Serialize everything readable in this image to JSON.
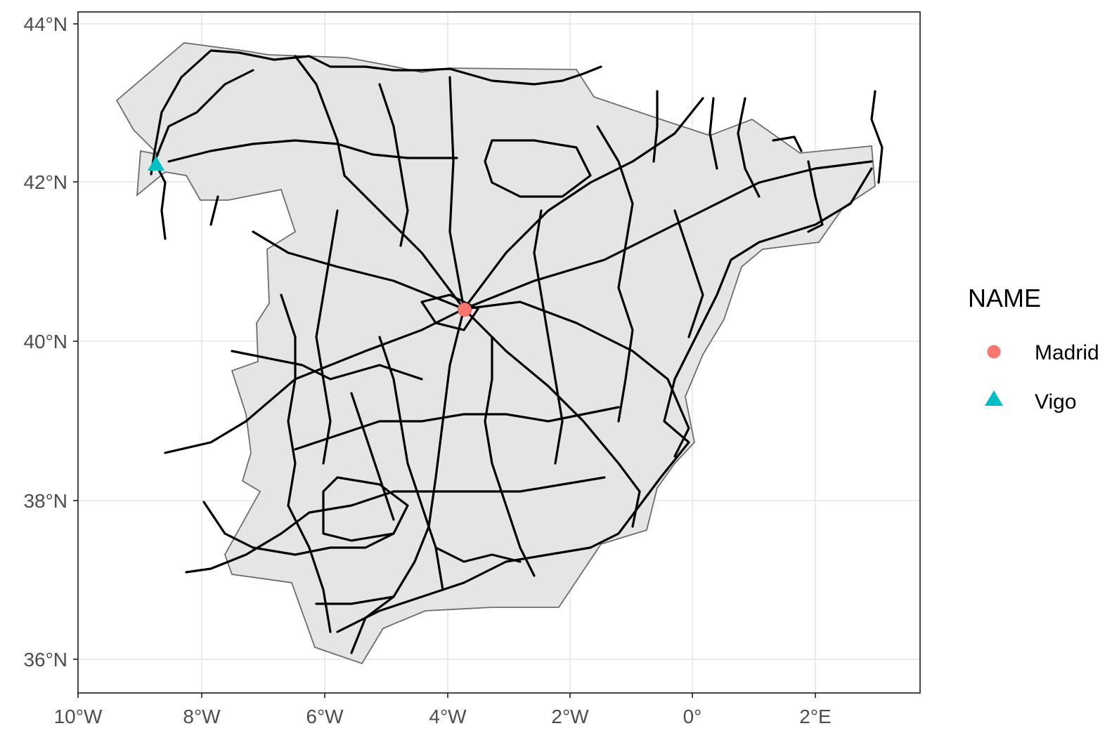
{
  "map": {
    "x_ticks": [
      "10°W",
      "8°W",
      "6°W",
      "4°W",
      "2°W",
      "0°",
      "2°E"
    ],
    "y_ticks": [
      "44°N",
      "42°N",
      "40°N",
      "38°N",
      "36°N"
    ],
    "land_fill": "#e5e5e5",
    "land_stroke": "#6e6e6e",
    "network_color": "#000000",
    "grid": true
  },
  "legend": {
    "title": "NAME",
    "items": [
      {
        "label": "Madrid",
        "shape": "circle",
        "color": "#F8766D"
      },
      {
        "label": "Vigo",
        "shape": "triangle",
        "color": "#00BFC4"
      }
    ]
  },
  "points": [
    {
      "name": "Madrid",
      "lon": -3.7,
      "lat": 40.4,
      "shape": "circle",
      "color": "#F8766D"
    },
    {
      "name": "Vigo",
      "lon": -8.72,
      "lat": 42.23,
      "shape": "triangle",
      "color": "#00BFC4"
    }
  ]
}
